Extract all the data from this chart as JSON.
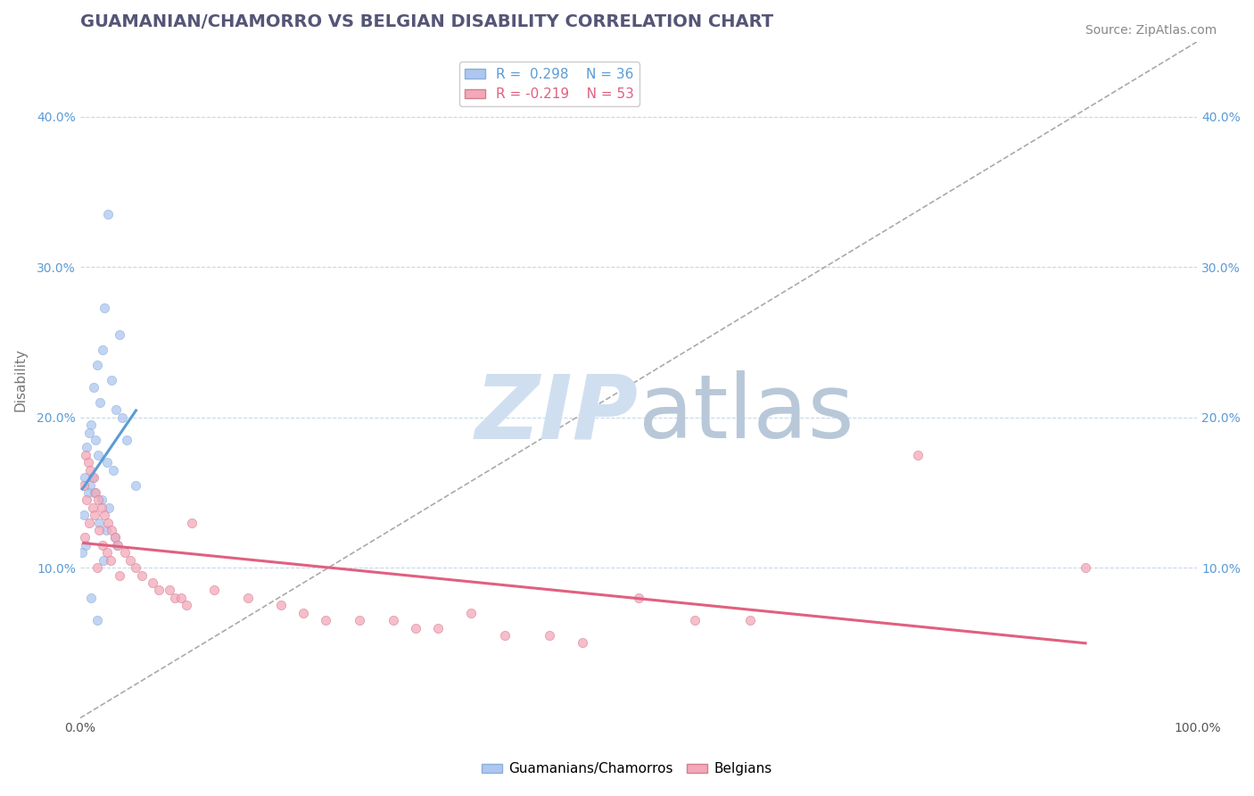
{
  "title": "GUAMANIAN/CHAMORRO VS BELGIAN DISABILITY CORRELATION CHART",
  "source": "Source: ZipAtlas.com",
  "xlabel_label": "",
  "ylabel_label": "Disability",
  "xlim": [
    0.0,
    1.0
  ],
  "ylim": [
    0.0,
    0.45
  ],
  "x_ticks": [
    0.0,
    1.0
  ],
  "x_tick_labels": [
    "0.0%",
    "100.0%"
  ],
  "y_ticks": [
    0.1,
    0.2,
    0.3,
    0.4
  ],
  "y_tick_labels": [
    "10.0%",
    "20.0%",
    "30.0%",
    "40.0%"
  ],
  "legend_labels": [
    "Guamanians/Chamorros",
    "Belgians"
  ],
  "R_guam": 0.298,
  "N_guam": 36,
  "R_belg": -0.219,
  "N_belg": 53,
  "guam_color": "#aec6f0",
  "belg_color": "#f4a7b9",
  "guam_line_color": "#5b9bd5",
  "belg_line_color": "#e06080",
  "watermark_color": "#d0dff0",
  "watermark_text": "ZIPatlas",
  "background_color": "#ffffff",
  "grid_color": "#c8d8e8",
  "scatter_alpha": 0.75,
  "guam_scatter": [
    [
      0.025,
      0.335
    ],
    [
      0.022,
      0.273
    ],
    [
      0.035,
      0.255
    ],
    [
      0.02,
      0.245
    ],
    [
      0.015,
      0.235
    ],
    [
      0.028,
      0.225
    ],
    [
      0.012,
      0.22
    ],
    [
      0.018,
      0.21
    ],
    [
      0.032,
      0.205
    ],
    [
      0.038,
      0.2
    ],
    [
      0.01,
      0.195
    ],
    [
      0.008,
      0.19
    ],
    [
      0.014,
      0.185
    ],
    [
      0.042,
      0.185
    ],
    [
      0.006,
      0.18
    ],
    [
      0.016,
      0.175
    ],
    [
      0.024,
      0.17
    ],
    [
      0.03,
      0.165
    ],
    [
      0.004,
      0.16
    ],
    [
      0.011,
      0.16
    ],
    [
      0.009,
      0.155
    ],
    [
      0.05,
      0.155
    ],
    [
      0.007,
      0.15
    ],
    [
      0.013,
      0.15
    ],
    [
      0.019,
      0.145
    ],
    [
      0.026,
      0.14
    ],
    [
      0.003,
      0.135
    ],
    [
      0.017,
      0.13
    ],
    [
      0.023,
      0.125
    ],
    [
      0.031,
      0.12
    ],
    [
      0.005,
      0.115
    ],
    [
      0.033,
      0.115
    ],
    [
      0.002,
      0.11
    ],
    [
      0.021,
      0.105
    ],
    [
      0.01,
      0.08
    ],
    [
      0.015,
      0.065
    ]
  ],
  "belg_scatter": [
    [
      0.005,
      0.175
    ],
    [
      0.007,
      0.17
    ],
    [
      0.009,
      0.165
    ],
    [
      0.012,
      0.16
    ],
    [
      0.003,
      0.155
    ],
    [
      0.014,
      0.15
    ],
    [
      0.006,
      0.145
    ],
    [
      0.016,
      0.145
    ],
    [
      0.011,
      0.14
    ],
    [
      0.019,
      0.14
    ],
    [
      0.013,
      0.135
    ],
    [
      0.022,
      0.135
    ],
    [
      0.008,
      0.13
    ],
    [
      0.025,
      0.13
    ],
    [
      0.017,
      0.125
    ],
    [
      0.028,
      0.125
    ],
    [
      0.004,
      0.12
    ],
    [
      0.031,
      0.12
    ],
    [
      0.02,
      0.115
    ],
    [
      0.034,
      0.115
    ],
    [
      0.024,
      0.11
    ],
    [
      0.04,
      0.11
    ],
    [
      0.027,
      0.105
    ],
    [
      0.045,
      0.105
    ],
    [
      0.015,
      0.1
    ],
    [
      0.05,
      0.1
    ],
    [
      0.1,
      0.13
    ],
    [
      0.035,
      0.095
    ],
    [
      0.055,
      0.095
    ],
    [
      0.065,
      0.09
    ],
    [
      0.07,
      0.085
    ],
    [
      0.08,
      0.085
    ],
    [
      0.085,
      0.08
    ],
    [
      0.09,
      0.08
    ],
    [
      0.12,
      0.085
    ],
    [
      0.095,
      0.075
    ],
    [
      0.15,
      0.08
    ],
    [
      0.18,
      0.075
    ],
    [
      0.2,
      0.07
    ],
    [
      0.22,
      0.065
    ],
    [
      0.25,
      0.065
    ],
    [
      0.28,
      0.065
    ],
    [
      0.3,
      0.06
    ],
    [
      0.32,
      0.06
    ],
    [
      0.35,
      0.07
    ],
    [
      0.38,
      0.055
    ],
    [
      0.42,
      0.055
    ],
    [
      0.45,
      0.05
    ],
    [
      0.5,
      0.08
    ],
    [
      0.55,
      0.065
    ],
    [
      0.6,
      0.065
    ],
    [
      0.75,
      0.175
    ],
    [
      0.9,
      0.1
    ]
  ],
  "title_fontsize": 14,
  "axis_label_fontsize": 11,
  "tick_fontsize": 10,
  "legend_fontsize": 11,
  "source_fontsize": 10
}
